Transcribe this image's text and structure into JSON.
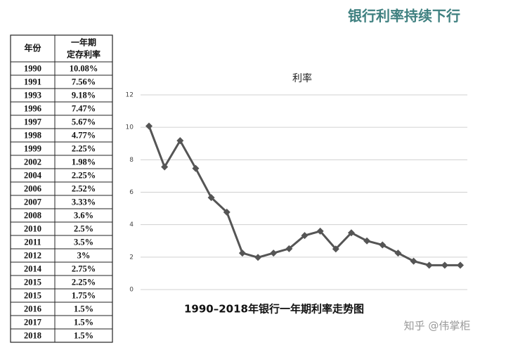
{
  "title": "银行利率持续下行",
  "table": {
    "header": [
      "年份",
      [
        "一年期",
        "定存利率"
      ]
    ],
    "rows": [
      [
        "1990",
        "10.08%"
      ],
      [
        "1991",
        "7.56%"
      ],
      [
        "1993",
        "9.18%"
      ],
      [
        "1996",
        "7.47%"
      ],
      [
        "1997",
        "5.67%"
      ],
      [
        "1998",
        "4.77%"
      ],
      [
        "1999",
        "2.25%"
      ],
      [
        "2002",
        "1.98%"
      ],
      [
        "2004",
        "2.25%"
      ],
      [
        "2006",
        "2.52%"
      ],
      [
        "2007",
        "3.33%"
      ],
      [
        "2008",
        "3.6%"
      ],
      [
        "2010",
        "2.5%"
      ],
      [
        "2011",
        "3.5%"
      ],
      [
        "2012",
        "3%"
      ],
      [
        "2014",
        "2.75%"
      ],
      [
        "2015",
        "2.25%"
      ],
      [
        "2015",
        "1.75%"
      ],
      [
        "2016",
        "1.5%"
      ],
      [
        "2017",
        "1.5%"
      ],
      [
        "2018",
        "1.5%"
      ]
    ]
  },
  "chart_data": {
    "type": "line",
    "title": "利率",
    "x_label": "1990–2018年银行一年期利率走势图",
    "values": [
      10.08,
      7.56,
      9.18,
      7.47,
      5.67,
      4.77,
      2.25,
      1.98,
      2.25,
      2.52,
      3.33,
      3.6,
      2.5,
      3.5,
      3,
      2.75,
      2.25,
      1.75,
      1.5,
      1.5,
      1.5
    ],
    "color": "#555555",
    "ylim": [
      0,
      12
    ],
    "yticks": [
      0,
      2,
      4,
      6,
      8,
      10,
      12
    ],
    "grid": true
  },
  "watermark": "知乎 @伟掌柜"
}
